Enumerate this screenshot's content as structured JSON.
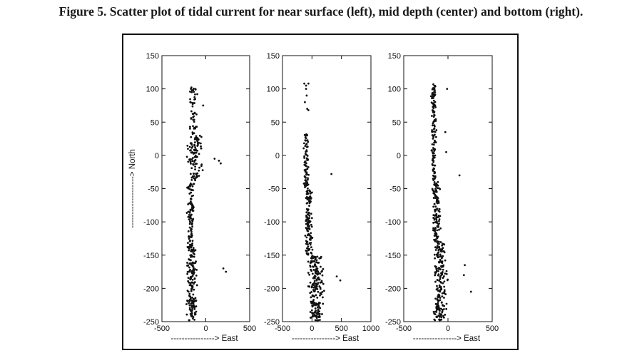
{
  "caption": "Figure 5. Scatter plot of tidal current for near surface (left), mid depth (center) and bottom (right).",
  "chart_data": [
    {
      "type": "scatter",
      "panel": "near surface (left)",
      "ylabel": "-------------------> North",
      "xlabel": "----------------> East",
      "xlim": [
        -500,
        500
      ],
      "ylim": [
        -250,
        150
      ],
      "xticks": [
        -500,
        0,
        500
      ],
      "yticks": [
        150,
        100,
        50,
        0,
        -50,
        -100,
        -150,
        -200,
        -250
      ],
      "clusters": [
        {
          "x_center": -160,
          "x_spread": 75,
          "y_range": [
            -250,
            -140
          ],
          "count": 170
        },
        {
          "x_center": -170,
          "x_spread": 55,
          "y_range": [
            -140,
            -40
          ],
          "count": 110
        },
        {
          "x_center": -120,
          "x_spread": 110,
          "y_range": [
            -40,
            30
          ],
          "count": 100
        },
        {
          "x_center": -140,
          "x_spread": 55,
          "y_range": [
            30,
            105
          ],
          "count": 45
        }
      ],
      "points": [
        [
          100,
          -5
        ],
        [
          150,
          -8
        ],
        [
          170,
          -12
        ],
        [
          200,
          -170
        ],
        [
          230,
          -175
        ],
        [
          -30,
          75
        ],
        [
          -170,
          100
        ],
        [
          -160,
          95
        ]
      ]
    },
    {
      "type": "scatter",
      "panel": "mid depth (center)",
      "xlabel": "----------------> East",
      "xlim": [
        -500,
        1000
      ],
      "ylim": [
        -250,
        150
      ],
      "xticks": [
        -500,
        0,
        500,
        1000
      ],
      "yticks": [
        150,
        100,
        50,
        0,
        -50,
        -100,
        -150,
        -200,
        -250
      ],
      "clusters": [
        {
          "x_center": 60,
          "x_spread": 170,
          "y_range": [
            -250,
            -150
          ],
          "count": 200
        },
        {
          "x_center": -60,
          "x_spread": 90,
          "y_range": [
            -150,
            -50
          ],
          "count": 130
        },
        {
          "x_center": -100,
          "x_spread": 60,
          "y_range": [
            -50,
            35
          ],
          "count": 80
        }
      ],
      "points": [
        [
          -130,
          108
        ],
        [
          -100,
          105
        ],
        [
          -60,
          108
        ],
        [
          -100,
          100
        ],
        [
          -90,
          90
        ],
        [
          -80,
          70
        ],
        [
          -60,
          68
        ],
        [
          -120,
          80
        ],
        [
          330,
          -28
        ],
        [
          480,
          -188
        ],
        [
          420,
          -182
        ]
      ]
    },
    {
      "type": "scatter",
      "panel": "bottom (right)",
      "xlabel": "----------------> East",
      "xlim": [
        -500,
        500
      ],
      "ylim": [
        -250,
        150
      ],
      "xticks": [
        -500,
        0,
        500
      ],
      "yticks": [
        150,
        100,
        50,
        0,
        -50,
        -100,
        -150,
        -200,
        -250
      ],
      "clusters": [
        {
          "x_center": -90,
          "x_spread": 100,
          "y_range": [
            -250,
            -130
          ],
          "count": 190
        },
        {
          "x_center": -130,
          "x_spread": 65,
          "y_range": [
            -130,
            -40
          ],
          "count": 120
        },
        {
          "x_center": -160,
          "x_spread": 40,
          "y_range": [
            -40,
            110
          ],
          "count": 130
        }
      ],
      "points": [
        [
          130,
          -30
        ],
        [
          260,
          -205
        ],
        [
          180,
          -180
        ],
        [
          190,
          -165
        ],
        [
          -20,
          5
        ],
        [
          -30,
          35
        ],
        [
          -10,
          100
        ]
      ]
    }
  ]
}
